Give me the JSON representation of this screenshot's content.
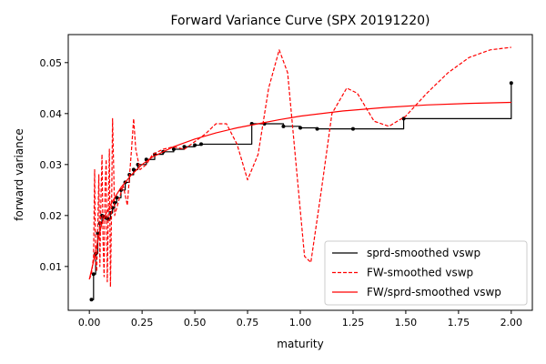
{
  "chart_data": {
    "type": "line",
    "title": "Forward Variance Curve (SPX 20191220)",
    "xlabel": "maturity",
    "ylabel": "forward variance",
    "xlim": [
      -0.1,
      2.1
    ],
    "ylim": [
      0.0014,
      0.0555
    ],
    "x_ticks": [
      0.0,
      0.25,
      0.5,
      0.75,
      1.0,
      1.25,
      1.5,
      1.75,
      2.0
    ],
    "x_tick_labels": [
      "0.00",
      "0.25",
      "0.50",
      "0.75",
      "1.00",
      "1.25",
      "1.50",
      "1.75",
      "2.00"
    ],
    "y_ticks": [
      0.01,
      0.02,
      0.03,
      0.04,
      0.05
    ],
    "y_tick_labels": [
      "0.01",
      "0.02",
      "0.03",
      "0.04",
      "0.05"
    ],
    "grid": false,
    "legend_position": "lower right",
    "colors": {
      "black": "#000000",
      "red": "#ff0000"
    },
    "series": [
      {
        "name": "sprd-smoothed vswp",
        "style": "step",
        "color": "#000000",
        "points": [
          [
            0.01,
            0.0035
          ],
          [
            0.02,
            0.0085
          ],
          [
            0.03,
            0.0125
          ],
          [
            0.04,
            0.0165
          ],
          [
            0.05,
            0.0185
          ],
          [
            0.06,
            0.02
          ],
          [
            0.07,
            0.0197
          ],
          [
            0.08,
            0.0195
          ],
          [
            0.09,
            0.0193
          ],
          [
            0.1,
            0.0205
          ],
          [
            0.11,
            0.0215
          ],
          [
            0.12,
            0.0225
          ],
          [
            0.13,
            0.0235
          ],
          [
            0.15,
            0.025
          ],
          [
            0.17,
            0.0265
          ],
          [
            0.19,
            0.028
          ],
          [
            0.21,
            0.029
          ],
          [
            0.23,
            0.03
          ],
          [
            0.27,
            0.031
          ],
          [
            0.31,
            0.032
          ],
          [
            0.35,
            0.0325
          ],
          [
            0.4,
            0.033
          ],
          [
            0.45,
            0.0335
          ],
          [
            0.5,
            0.0338
          ],
          [
            0.53,
            0.034
          ],
          [
            0.77,
            0.038
          ],
          [
            0.83,
            0.038
          ],
          [
            0.92,
            0.0375
          ],
          [
            1.0,
            0.0372
          ],
          [
            1.08,
            0.037
          ],
          [
            1.25,
            0.037
          ],
          [
            1.49,
            0.039
          ],
          [
            2.0,
            0.046
          ]
        ]
      },
      {
        "name": "FW-smoothed vswp",
        "style": "dashed",
        "color": "#ff0000",
        "points": [
          [
            0.0,
            0.0075
          ],
          [
            0.01,
            0.0085
          ],
          [
            0.02,
            0.012
          ],
          [
            0.025,
            0.029
          ],
          [
            0.03,
            0.011
          ],
          [
            0.035,
            0.009
          ],
          [
            0.04,
            0.018
          ],
          [
            0.045,
            0.028
          ],
          [
            0.05,
            0.01
          ],
          [
            0.055,
            0.023
          ],
          [
            0.06,
            0.032
          ],
          [
            0.065,
            0.015
          ],
          [
            0.07,
            0.008
          ],
          [
            0.075,
            0.026
          ],
          [
            0.08,
            0.031
          ],
          [
            0.085,
            0.007
          ],
          [
            0.09,
            0.02
          ],
          [
            0.095,
            0.033
          ],
          [
            0.1,
            0.006
          ],
          [
            0.105,
            0.02
          ],
          [
            0.11,
            0.039
          ],
          [
            0.115,
            0.03
          ],
          [
            0.12,
            0.02
          ],
          [
            0.14,
            0.023
          ],
          [
            0.16,
            0.026
          ],
          [
            0.18,
            0.022
          ],
          [
            0.2,
            0.033
          ],
          [
            0.21,
            0.039
          ],
          [
            0.22,
            0.033
          ],
          [
            0.24,
            0.029
          ],
          [
            0.27,
            0.03
          ],
          [
            0.3,
            0.032
          ],
          [
            0.35,
            0.033
          ],
          [
            0.4,
            0.0335
          ],
          [
            0.45,
            0.033
          ],
          [
            0.5,
            0.0345
          ],
          [
            0.55,
            0.036
          ],
          [
            0.6,
            0.038
          ],
          [
            0.65,
            0.038
          ],
          [
            0.7,
            0.034
          ],
          [
            0.75,
            0.027
          ],
          [
            0.8,
            0.032
          ],
          [
            0.85,
            0.045
          ],
          [
            0.9,
            0.0525
          ],
          [
            0.94,
            0.048
          ],
          [
            0.98,
            0.03
          ],
          [
            1.02,
            0.012
          ],
          [
            1.05,
            0.0108
          ],
          [
            1.1,
            0.025
          ],
          [
            1.15,
            0.04
          ],
          [
            1.22,
            0.045
          ],
          [
            1.27,
            0.044
          ],
          [
            1.35,
            0.0385
          ],
          [
            1.42,
            0.0375
          ],
          [
            1.5,
            0.0395
          ],
          [
            1.6,
            0.044
          ],
          [
            1.7,
            0.048
          ],
          [
            1.8,
            0.051
          ],
          [
            1.9,
            0.0525
          ],
          [
            2.0,
            0.053
          ]
        ]
      },
      {
        "name": "FW/sprd-smoothed vswp",
        "style": "solid",
        "color": "#ff0000",
        "points": [
          [
            0.0,
            0.0075
          ],
          [
            0.02,
            0.011
          ],
          [
            0.04,
            0.015
          ],
          [
            0.06,
            0.0185
          ],
          [
            0.08,
            0.0205
          ],
          [
            0.1,
            0.022
          ],
          [
            0.12,
            0.0235
          ],
          [
            0.15,
            0.0255
          ],
          [
            0.2,
            0.028
          ],
          [
            0.25,
            0.03
          ],
          [
            0.3,
            0.0315
          ],
          [
            0.4,
            0.0335
          ],
          [
            0.5,
            0.035
          ],
          [
            0.6,
            0.0362
          ],
          [
            0.7,
            0.0372
          ],
          [
            0.8,
            0.038
          ],
          [
            0.9,
            0.0388
          ],
          [
            1.0,
            0.0395
          ],
          [
            1.2,
            0.0405
          ],
          [
            1.4,
            0.0412
          ],
          [
            1.6,
            0.0417
          ],
          [
            1.8,
            0.042
          ],
          [
            2.0,
            0.0422
          ]
        ]
      }
    ]
  }
}
